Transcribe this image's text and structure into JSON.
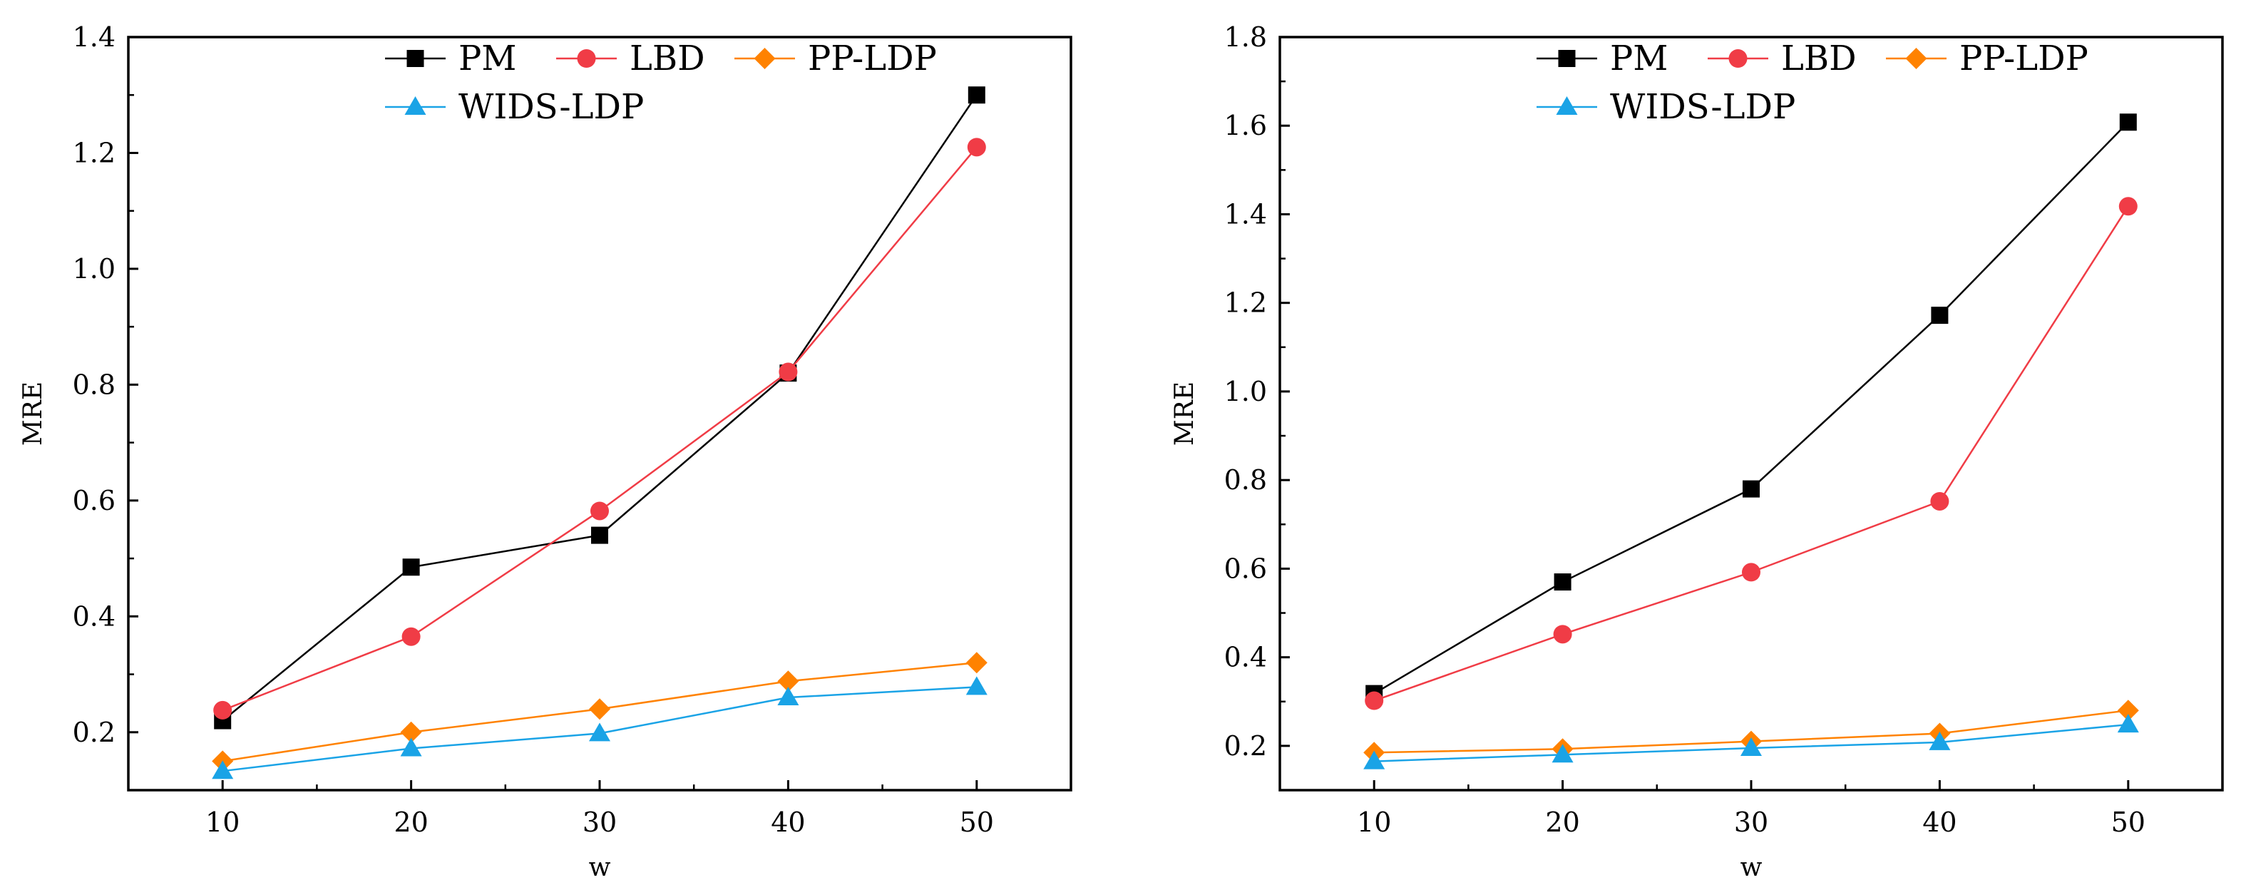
{
  "legend": [
    "PM",
    "LBD",
    "PP-LDP",
    "WIDS-LDP"
  ],
  "colors": {
    "PM": "#000000",
    "LBD": "#f03c46",
    "PP-LDP": "#ff8200",
    "WIDS-LDP": "#1aa3e6"
  },
  "markers": {
    "PM": "square",
    "LBD": "circle",
    "PP-LDP": "diamond",
    "WIDS-LDP": "triangle"
  },
  "chart_data": [
    {
      "type": "line",
      "xlabel": "w",
      "ylabel": "MRE",
      "x": [
        10,
        20,
        30,
        40,
        50
      ],
      "xlim": [
        5,
        55
      ],
      "ylim": [
        0.1,
        1.4
      ],
      "xticks": [
        10,
        20,
        30,
        40,
        50
      ],
      "xtick_labels": [
        "10",
        "20",
        "30",
        "40",
        "50"
      ],
      "yticks": [
        0.2,
        0.4,
        0.6,
        0.8,
        1.0,
        1.2,
        1.4
      ],
      "ytick_labels": [
        "0.2",
        "0.4",
        "0.6",
        "0.8",
        "1.0",
        "1.2",
        "1.4"
      ],
      "legend_position": "top-right",
      "series": [
        {
          "name": "PM",
          "values": [
            0.22,
            0.485,
            0.54,
            0.82,
            1.3
          ]
        },
        {
          "name": "LBD",
          "values": [
            0.238,
            0.365,
            0.582,
            0.822,
            1.21
          ]
        },
        {
          "name": "PP-LDP",
          "values": [
            0.15,
            0.2,
            0.24,
            0.288,
            0.32
          ]
        },
        {
          "name": "WIDS-LDP",
          "values": [
            0.133,
            0.172,
            0.198,
            0.26,
            0.278
          ]
        }
      ]
    },
    {
      "type": "line",
      "xlabel": "w",
      "ylabel": "MRE",
      "x": [
        10,
        20,
        30,
        40,
        50
      ],
      "xlim": [
        5,
        55
      ],
      "ylim": [
        0.1,
        1.8
      ],
      "xticks": [
        10,
        20,
        30,
        40,
        50
      ],
      "xtick_labels": [
        "10",
        "20",
        "30",
        "40",
        "50"
      ],
      "yticks": [
        0.2,
        0.4,
        0.6,
        0.8,
        1.0,
        1.2,
        1.4,
        1.6,
        1.8
      ],
      "ytick_labels": [
        "0.2",
        "0.4",
        "0.6",
        "0.8",
        "1.0",
        "1.2",
        "1.4",
        "1.6",
        "1.8"
      ],
      "legend_position": "top-right",
      "series": [
        {
          "name": "PM",
          "values": [
            0.318,
            0.57,
            0.78,
            1.172,
            1.608
          ]
        },
        {
          "name": "LBD",
          "values": [
            0.302,
            0.452,
            0.592,
            0.752,
            1.418
          ]
        },
        {
          "name": "PP-LDP",
          "values": [
            0.185,
            0.193,
            0.21,
            0.228,
            0.28
          ]
        },
        {
          "name": "WIDS-LDP",
          "values": [
            0.165,
            0.18,
            0.195,
            0.208,
            0.248
          ]
        }
      ]
    }
  ]
}
